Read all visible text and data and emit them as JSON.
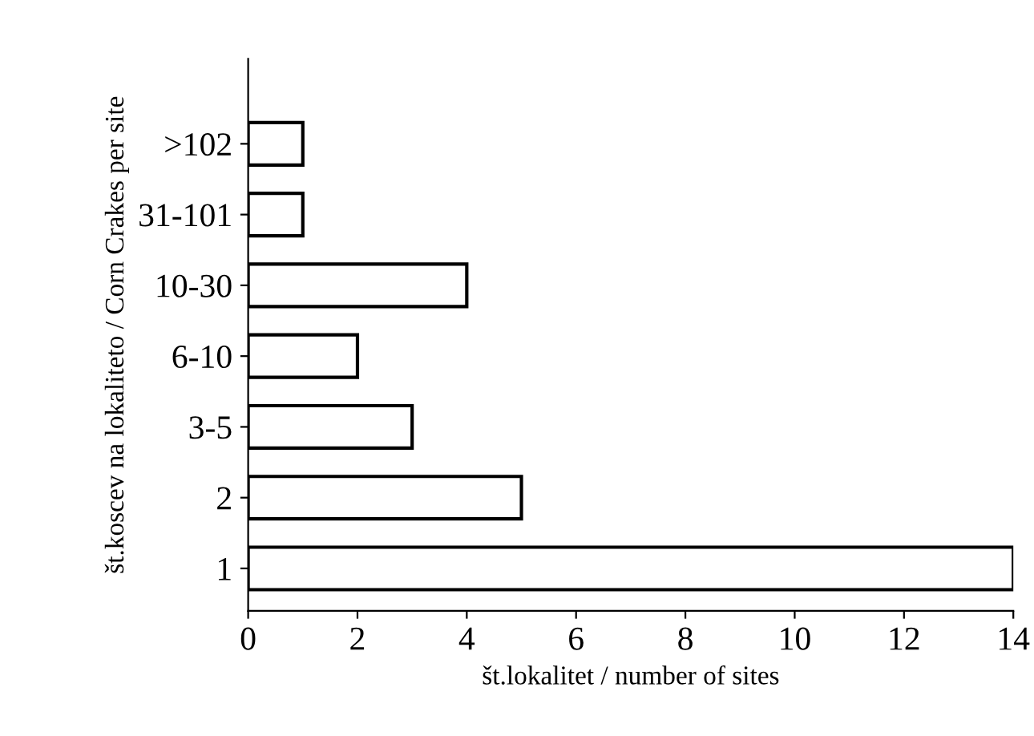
{
  "chart_data": {
    "type": "bar",
    "orientation": "horizontal",
    "xlabel": "št.lokalitet / number of sites",
    "ylabel": "št.koscev na lokaliteto / Corn Crakes per site",
    "categories": [
      ">102",
      "31-101",
      "10-30",
      "6-10",
      "3-5",
      "2",
      "1"
    ],
    "values": [
      1,
      1,
      4,
      2,
      3,
      5,
      14
    ],
    "color": "#ffffff",
    "xlim": [
      0,
      14
    ],
    "xticks": [
      0,
      2,
      4,
      6,
      8,
      10,
      12,
      14
    ],
    "grid": false
  }
}
